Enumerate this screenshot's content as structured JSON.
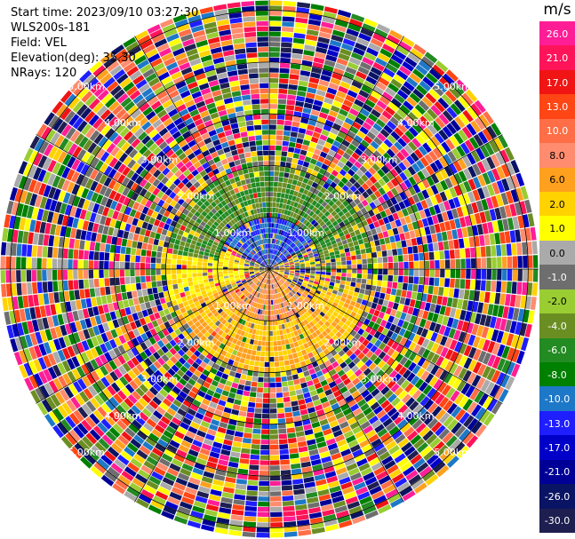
{
  "header": {
    "start_time": "Start time: 2023/09/10 03:27:30",
    "site": "WLS200s-181",
    "field": "Field: VEL",
    "elevation": "Elevation(deg): 35.30",
    "nrays": "NRays: 120"
  },
  "colorbar": {
    "unit": "m/s",
    "ticks": [
      "26.0",
      "21.0",
      "17.0",
      "13.0",
      "10.0",
      "8.0",
      "6.0",
      "2.0",
      "1.0",
      "0.0",
      "-1.0",
      "-2.0",
      "-4.0",
      "-6.0",
      "-8.0",
      "-10.0",
      "-13.0",
      "-17.0",
      "-21.0",
      "-26.0",
      "-30.0"
    ],
    "colors": [
      "#ff1e96",
      "#ff145a",
      "#f01414",
      "#ff4614",
      "#ff6e46",
      "#ff8c6e",
      "#ffa01e",
      "#ffd200",
      "#ffff00",
      "#aaaaaa",
      "#6e6e6e",
      "#9acd32",
      "#6b8e23",
      "#228b22",
      "#008000",
      "#1e78c8",
      "#1e1eff",
      "#0000c8",
      "#000096",
      "#0a1464",
      "#1e1e50"
    ]
  },
  "chart_data": {
    "type": "ppi",
    "field": "VEL",
    "units": "m/s",
    "elevation_deg": 35.3,
    "nrays": 120,
    "range_rings_km": [
      1.0,
      2.0,
      3.0,
      4.0,
      5.0
    ],
    "ring_labels": [
      "1.00km",
      "2.00km",
      "3.00km",
      "4.00km",
      "5.00km"
    ],
    "max_range_km": 5.2,
    "azimuth_spokes_deg": [
      0,
      30,
      60,
      90,
      120,
      150,
      180,
      210,
      240,
      270,
      300,
      330
    ],
    "inner_pattern": [
      {
        "range_km": [
          0,
          1.0
        ],
        "azimuth_deg": [
          -60,
          60
        ],
        "velocity": -10.0
      },
      {
        "range_km": [
          0,
          1.0
        ],
        "azimuth_deg": [
          120,
          240
        ],
        "velocity": 8.0
      },
      {
        "range_km": [
          1.0,
          2.0
        ],
        "azimuth_deg": [
          -80,
          80
        ],
        "velocity": -4.0
      },
      {
        "range_km": [
          1.0,
          2.0
        ],
        "azimuth_deg": [
          110,
          250
        ],
        "velocity": 6.0
      },
      {
        "range_km": [
          0.5,
          2.0
        ],
        "azimuth_deg": [
          250,
          290
        ],
        "velocity": 2.0
      }
    ]
  }
}
